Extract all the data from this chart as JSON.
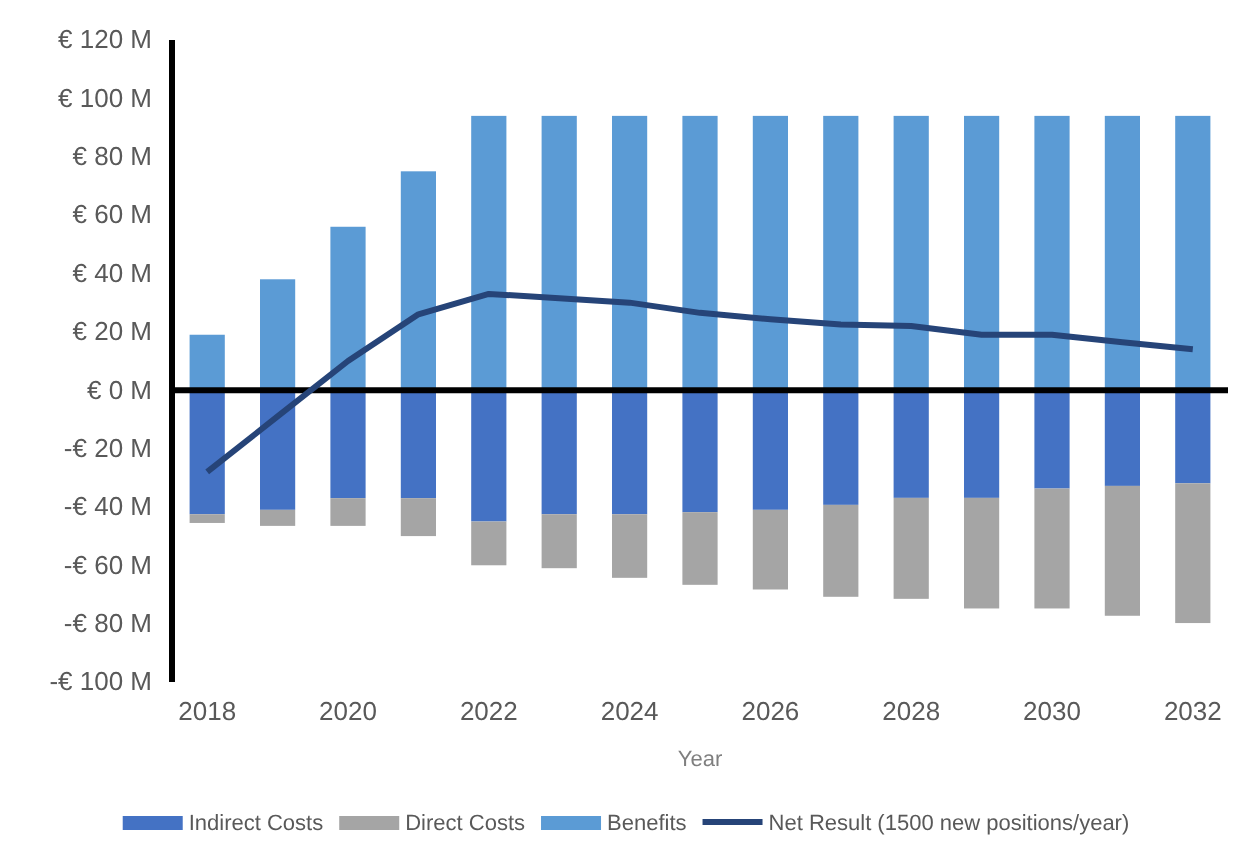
{
  "chart_data": {
    "type": "bar",
    "stacked": true,
    "xlabel": "Year",
    "legend": "bottom",
    "categories": [
      "2018",
      null,
      "2020",
      null,
      "2022",
      null,
      "2024",
      null,
      "2026",
      null,
      "2028",
      null,
      "2030",
      null,
      "2032"
    ],
    "ylim": [
      -100,
      120
    ],
    "yticks": [
      {
        "value": -100,
        "label": "-€ 100  M"
      },
      {
        "value": -80,
        "label": "-€ 80  M"
      },
      {
        "value": -60,
        "label": "-€ 60  M"
      },
      {
        "value": -40,
        "label": "-€ 40  M"
      },
      {
        "value": -20,
        "label": "-€ 20  M"
      },
      {
        "value": 0,
        "label": "€ 0  M"
      },
      {
        "value": 20,
        "label": "€ 20  M"
      },
      {
        "value": 40,
        "label": "€ 40  M"
      },
      {
        "value": 60,
        "label": "€ 60  M"
      },
      {
        "value": 80,
        "label": "€ 80  M"
      },
      {
        "value": 100,
        "label": "€ 100  M"
      },
      {
        "value": 120,
        "label": "€ 120  M"
      }
    ],
    "series": [
      {
        "name": "Indirect Costs",
        "color": "#4472c4",
        "values": [
          -42.5,
          -41,
          -37,
          -37,
          -45,
          -42.5,
          -42.5,
          -41.8,
          -41,
          -39.3,
          -36.9,
          -36.9,
          -33.7,
          -32.8,
          -31.9
        ]
      },
      {
        "name": "Direct Costs",
        "color": "#a5a5a5",
        "values": [
          -3,
          -5.5,
          -9.5,
          -13,
          -15,
          -18.5,
          -21.8,
          -24.9,
          -27.3,
          -31.5,
          -34.6,
          -37.9,
          -41.1,
          -44.5,
          -47.9
        ]
      },
      {
        "name": "Benefits",
        "color": "#5b9bd5",
        "values": [
          19,
          38,
          56,
          75,
          94,
          94,
          94,
          94,
          94,
          94,
          94,
          94,
          94,
          94,
          94
        ]
      },
      {
        "name": "Net Result (1500 new positions/year)",
        "type": "line",
        "color": "#264478",
        "line_style": "solid",
        "marker": "none",
        "values": [
          -28,
          -9,
          10,
          26,
          33,
          31.5,
          30,
          26.5,
          24.3,
          22.5,
          22,
          19,
          19,
          16.4,
          14
        ]
      }
    ]
  }
}
